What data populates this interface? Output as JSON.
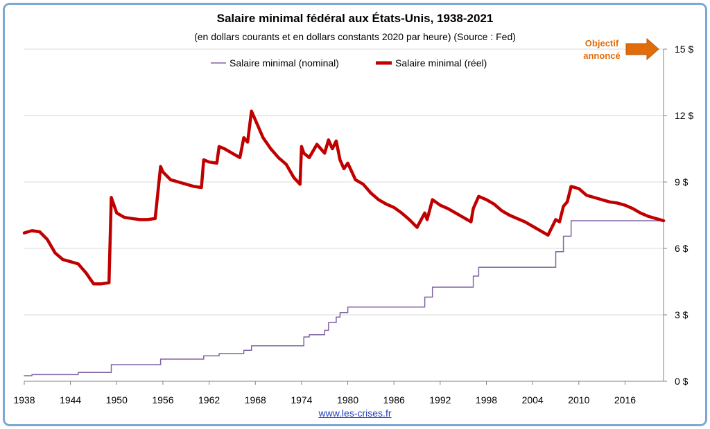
{
  "chart_data": {
    "type": "line",
    "title": "Salaire minimal fédéral aux États-Unis, 1938-2021",
    "subtitle": "(en dollars courants et en dollars constants 2020 par heure) (Source : Fed)",
    "xlim": [
      1938,
      2021
    ],
    "ylim": [
      0,
      15
    ],
    "x_ticks": [
      "1938",
      "1944",
      "1950",
      "1956",
      "1962",
      "1968",
      "1974",
      "1980",
      "1986",
      "1992",
      "1998",
      "2004",
      "2010",
      "2016"
    ],
    "y_ticks": [
      "0 $",
      "3 $",
      "6 $",
      "9 $",
      "12 $",
      "15 $"
    ],
    "y_tick_values": [
      0,
      3,
      6,
      9,
      12,
      15
    ],
    "grid": "horizontal",
    "legend_position": "top-center",
    "series": [
      {
        "name": "Salaire minimal (nominal)",
        "color": "#8064a2",
        "step": true,
        "x": [
          1938,
          1939,
          1945,
          1949.3,
          1955.7,
          1961.3,
          1963.3,
          1966.5,
          1967.5,
          1973.8,
          1974.3,
          1975,
          1977,
          1977.5,
          1978,
          1978.5,
          1979,
          1980,
          1990,
          1990.3,
          1991,
          1996,
          1996.3,
          1997,
          2007,
          2007.5,
          2008,
          2008.5,
          2009,
          2021
        ],
        "values": [
          0.25,
          0.3,
          0.4,
          0.75,
          1.0,
          1.15,
          1.25,
          1.4,
          1.6,
          1.6,
          2.0,
          2.1,
          2.3,
          2.65,
          2.65,
          2.9,
          3.1,
          3.35,
          3.8,
          3.8,
          4.25,
          4.25,
          4.75,
          5.15,
          5.85,
          5.85,
          6.55,
          6.55,
          7.25,
          7.25
        ]
      },
      {
        "name": "Salaire minimal (réel)",
        "color": "#c00000",
        "step": false,
        "x": [
          1938,
          1939,
          1940,
          1941,
          1942,
          1943,
          1944,
          1945,
          1946,
          1947,
          1948,
          1949,
          1949.3,
          1950,
          1951,
          1952,
          1953,
          1954,
          1955,
          1955.7,
          1956,
          1957,
          1958,
          1959,
          1960,
          1961,
          1961.3,
          1962,
          1963,
          1963.3,
          1964,
          1965,
          1966,
          1966.5,
          1967,
          1967.5,
          1968,
          1969,
          1970,
          1971,
          1972,
          1973,
          1973.8,
          1974,
          1974.3,
          1975,
          1976,
          1977,
          1977.5,
          1978,
          1978.5,
          1979,
          1979.5,
          1980,
          1981,
          1982,
          1983,
          1984,
          1985,
          1986,
          1987,
          1988,
          1989,
          1990,
          1990.3,
          1991,
          1992,
          1993,
          1994,
          1995,
          1996,
          1996.3,
          1997,
          1998,
          1999,
          2000,
          2001,
          2002,
          2003,
          2004,
          2005,
          2006,
          2007,
          2007.5,
          2008,
          2008.5,
          2009,
          2010,
          2011,
          2012,
          2013,
          2014,
          2015,
          2016,
          2017,
          2018,
          2019,
          2020,
          2021
        ],
        "values": [
          6.7,
          6.8,
          6.75,
          6.4,
          5.8,
          5.5,
          5.4,
          5.3,
          4.9,
          4.4,
          4.4,
          4.45,
          8.3,
          7.6,
          7.4,
          7.35,
          7.3,
          7.3,
          7.35,
          9.7,
          9.45,
          9.1,
          9.0,
          8.9,
          8.8,
          8.75,
          10.0,
          9.9,
          9.85,
          10.6,
          10.5,
          10.3,
          10.1,
          11.0,
          10.8,
          12.2,
          11.8,
          11.0,
          10.5,
          10.1,
          9.8,
          9.2,
          8.9,
          10.6,
          10.3,
          10.1,
          10.7,
          10.3,
          10.9,
          10.5,
          10.85,
          10.0,
          9.6,
          9.85,
          9.1,
          8.9,
          8.5,
          8.2,
          8.0,
          7.85,
          7.6,
          7.3,
          6.95,
          7.6,
          7.3,
          8.2,
          7.95,
          7.8,
          7.6,
          7.4,
          7.2,
          7.8,
          8.35,
          8.2,
          8.0,
          7.7,
          7.5,
          7.35,
          7.2,
          7.0,
          6.8,
          6.6,
          7.3,
          7.2,
          7.9,
          8.1,
          8.8,
          8.7,
          8.4,
          8.3,
          8.2,
          8.1,
          8.05,
          7.95,
          7.8,
          7.6,
          7.45,
          7.35,
          7.25
        ]
      }
    ],
    "annotation": {
      "line1": "Objectif",
      "line2": "annoncé",
      "color": "#e36c0a",
      "arrow_color": "#e36c0a",
      "target_value": 15
    }
  },
  "source_link": "www.les-crises.fr"
}
